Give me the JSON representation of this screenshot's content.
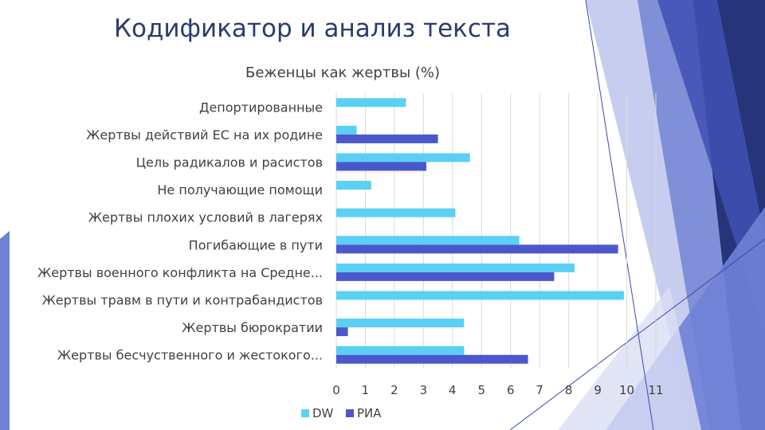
{
  "slide": {
    "title": "Кодификатор и анализ текста",
    "colors": {
      "title": "#2b3b6a",
      "deco_light": "#a9b4e6",
      "deco_mid": "#6576cf",
      "deco_dark": "#26357a"
    }
  },
  "chart_data": {
    "type": "bar",
    "orientation": "horizontal",
    "title": "Беженцы как жертвы (%)",
    "categories": [
      "Депортированные",
      "Жертвы действий ЕС на их родине",
      "Цель радикалов и расистов",
      "Не получающие помощи",
      "Жертвы плохих условий в лагерях",
      "Погибающие в пути",
      "Жертвы военного конфликта на Средне...",
      "Жертвы травм в пути и контрабандистов",
      "Жертвы бюрократии",
      "Жертвы бесчуственного и жестокого..."
    ],
    "series": [
      {
        "name": "DW",
        "color": "#5bd0f2",
        "values": [
          2.4,
          0.7,
          4.6,
          1.2,
          4.1,
          6.3,
          8.2,
          9.9,
          4.4,
          4.4
        ]
      },
      {
        "name": "РИА",
        "color": "#4a58cc",
        "values": [
          null,
          3.5,
          3.1,
          null,
          null,
          9.7,
          7.5,
          null,
          0.4,
          6.6
        ]
      }
    ],
    "xlim": [
      0,
      11
    ],
    "xticks": [
      "0",
      "1",
      "2",
      "3",
      "4",
      "5",
      "6",
      "7",
      "8",
      "9",
      "10",
      "11"
    ],
    "grid": true,
    "legend": "bottom"
  }
}
